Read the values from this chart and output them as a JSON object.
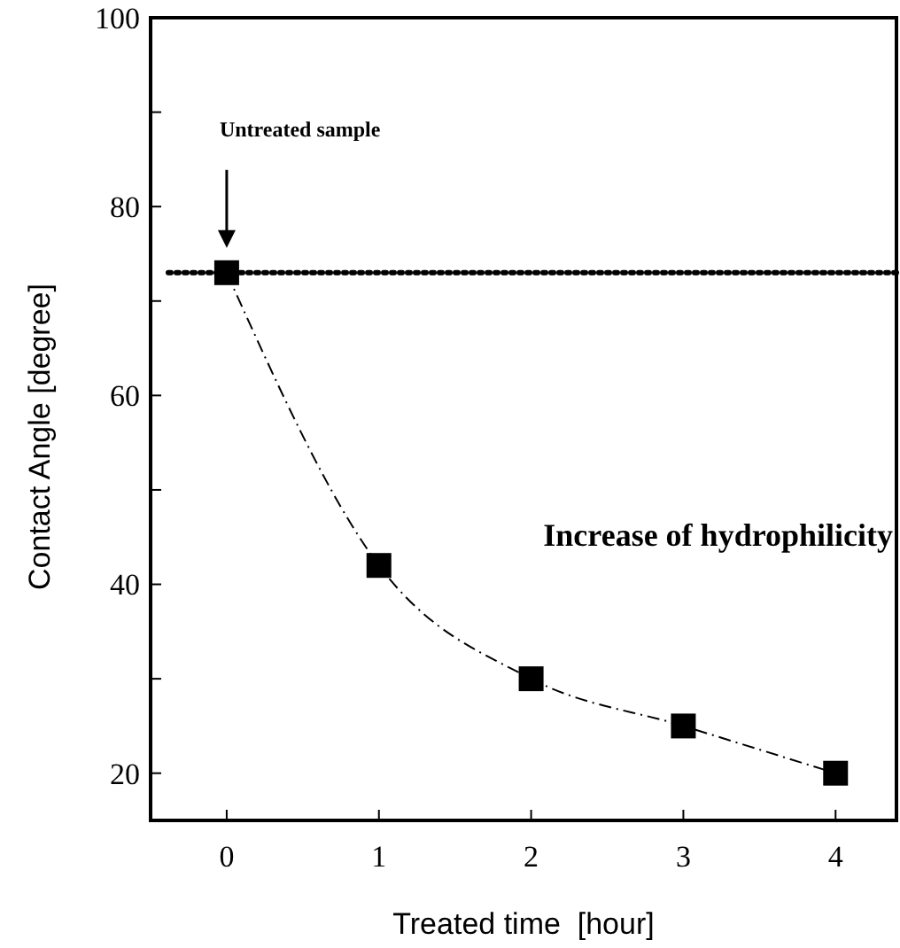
{
  "chart_data": {
    "type": "line",
    "xlabel": "Treated time  [hour]",
    "ylabel": "Contact Angle [degree]",
    "x": [
      0,
      1,
      2,
      3,
      4
    ],
    "series": [
      {
        "color": "#000000",
        "values": [
          73,
          42,
          30,
          25,
          20
        ]
      }
    ],
    "marker": "square",
    "line_style": "dashed",
    "xlim": [
      -0.5,
      4.4
    ],
    "xticks": [
      0,
      1,
      2,
      3,
      4
    ],
    "ylim": [
      15,
      100
    ],
    "yticks": [
      20,
      {
        "value": 30,
        "label": null
      },
      40,
      {
        "value": 50,
        "label": null
      },
      60,
      {
        "value": 70,
        "label": null
      },
      80,
      {
        "value": 90,
        "label": null
      },
      100
    ],
    "ref_lines": [
      {
        "axis": "y",
        "value": 73,
        "line_style": "dotted",
        "color": "#000000"
      }
    ],
    "annotations": [
      "Untreated sample",
      "Increase of hydrophilicity"
    ]
  }
}
